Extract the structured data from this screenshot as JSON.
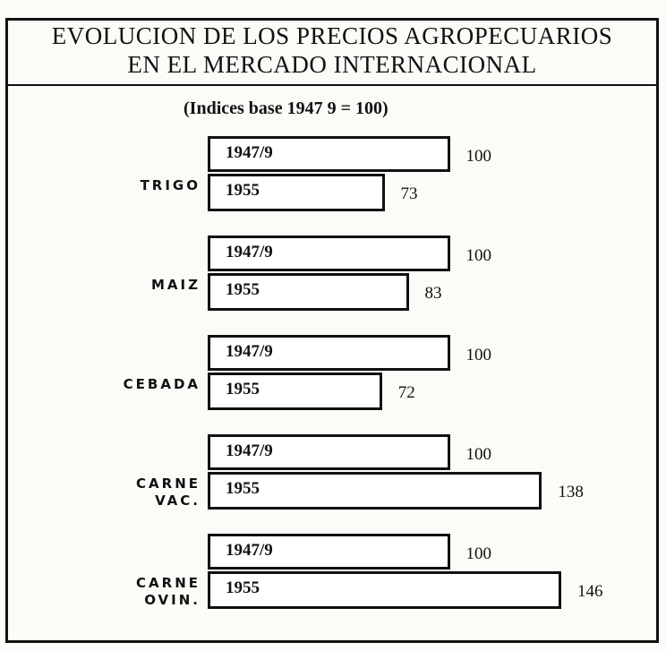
{
  "chart_data": {
    "type": "bar",
    "title": "EVOLUCION DE LOS PRECIOS AGROPECUARIOS\nEN EL MERCADO INTERNACIONAL",
    "subtitle": "(Indices base 1947 9 = 100)",
    "categories": [
      "TRIGO",
      "MAIZ",
      "CEBADA",
      "CARNE\nVAC.",
      "CARNE\nOVIN."
    ],
    "series": [
      {
        "name": "1947/9",
        "color": "#ffffff",
        "values": [
          100,
          100,
          100,
          100,
          100
        ]
      },
      {
        "name": "1955",
        "color": "#ffffff",
        "values": [
          73,
          83,
          72,
          138,
          146
        ]
      }
    ]
  }
}
